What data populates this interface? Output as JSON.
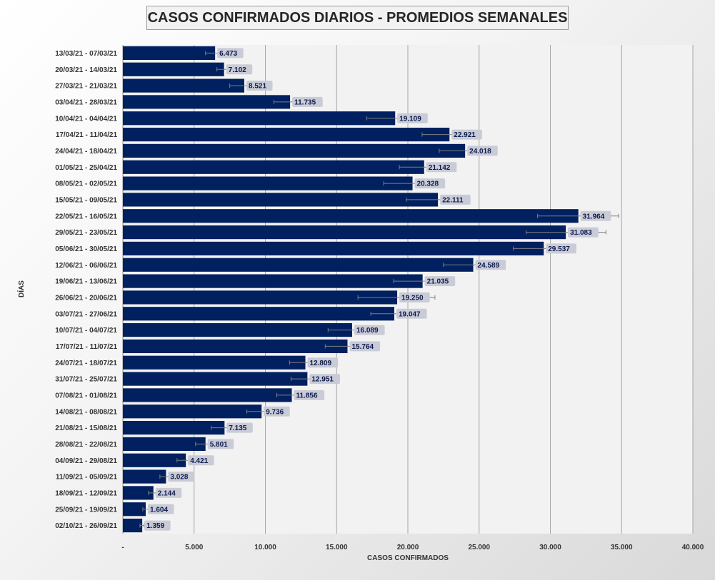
{
  "chart_data": {
    "type": "bar",
    "orientation": "horizontal",
    "title": "CASOS CONFIRMADOS DIARIOS - PROMEDIOS SEMANALES",
    "xlabel": "CASOS CONFIRMADOS",
    "ylabel": "DÍAS",
    "xlim": [
      0,
      40000
    ],
    "x_ticks": [
      "-",
      "5.000",
      "10.000",
      "15.000",
      "20.000",
      "25.000",
      "30.000",
      "35.000",
      "40.000"
    ],
    "grid": "vertical",
    "legend": "none",
    "bar_color": "#002060",
    "label_bg_color": "#c9ccd6",
    "plot_bg_color": "#f2f2f2",
    "categories": [
      "13/03/21 - 07/03/21",
      "20/03/21 - 14/03/21",
      "27/03/21 - 21/03/21",
      "03/04/21 - 28/03/21",
      "10/04/21 - 04/04/21",
      "17/04/21 - 11/04/21",
      "24/04/21 - 18/04/21",
      "01/05/21 - 25/04/21",
      "08/05/21 - 02/05/21",
      "15/05/21 - 09/05/21",
      "22/05/21 - 16/05/21",
      "29/05/21 - 23/05/21",
      "05/06/21 - 30/05/21",
      "12/06/21 - 06/06/21",
      "19/06/21 - 13/06/21",
      "26/06/21 - 20/06/21",
      "03/07/21 - 27/06/21",
      "10/07/21 - 04/07/21",
      "17/07/21 - 11/07/21",
      "24/07/21 - 18/07/21",
      "31/07/21 - 25/07/21",
      "07/08/21 - 01/08/21",
      "14/08/21 - 08/08/21",
      "21/08/21 - 15/08/21",
      "28/08/21 - 22/08/21",
      "04/09/21 - 29/08/21",
      "11/09/21 - 05/09/21",
      "18/09/21 - 12/09/21",
      "25/09/21 - 19/09/21",
      "02/10/21 - 26/09/21"
    ],
    "values": [
      6473,
      7102,
      8521,
      11735,
      19109,
      22921,
      24018,
      21142,
      20328,
      22111,
      31964,
      31083,
      29537,
      24589,
      21035,
      19250,
      19047,
      16089,
      15764,
      12809,
      12951,
      11856,
      9736,
      7135,
      5801,
      4421,
      3028,
      2144,
      1604,
      1359
    ],
    "value_labels": [
      "6.473",
      "7.102",
      "8.521",
      "11.735",
      "19.109",
      "22.921",
      "24.018",
      "21.142",
      "20.328",
      "22.111",
      "31.964",
      "31.083",
      "29.537",
      "24.589",
      "21.035",
      "19.250",
      "19.047",
      "16.089",
      "15.764",
      "12.809",
      "12.951",
      "11.856",
      "9.736",
      "7.135",
      "5.801",
      "4.421",
      "3.028",
      "2.144",
      "1.604",
      "1.359"
    ],
    "error_low": [
      5800,
      6600,
      7500,
      10600,
      17100,
      21000,
      22200,
      19400,
      18300,
      19900,
      29100,
      28300,
      27400,
      22500,
      19000,
      16500,
      17400,
      14400,
      14200,
      11700,
      11800,
      10800,
      8700,
      6200,
      5100,
      3800,
      2600,
      1800,
      1400,
      1200
    ],
    "error_high": [
      7100,
      7600,
      9600,
      12900,
      21000,
      24800,
      25800,
      22900,
      22400,
      24300,
      34800,
      33900,
      31700,
      26800,
      23100,
      21900,
      20700,
      17800,
      17300,
      13900,
      14100,
      12900,
      10800,
      8000,
      6500,
      5000,
      3500,
      2500,
      1800,
      1500
    ]
  }
}
